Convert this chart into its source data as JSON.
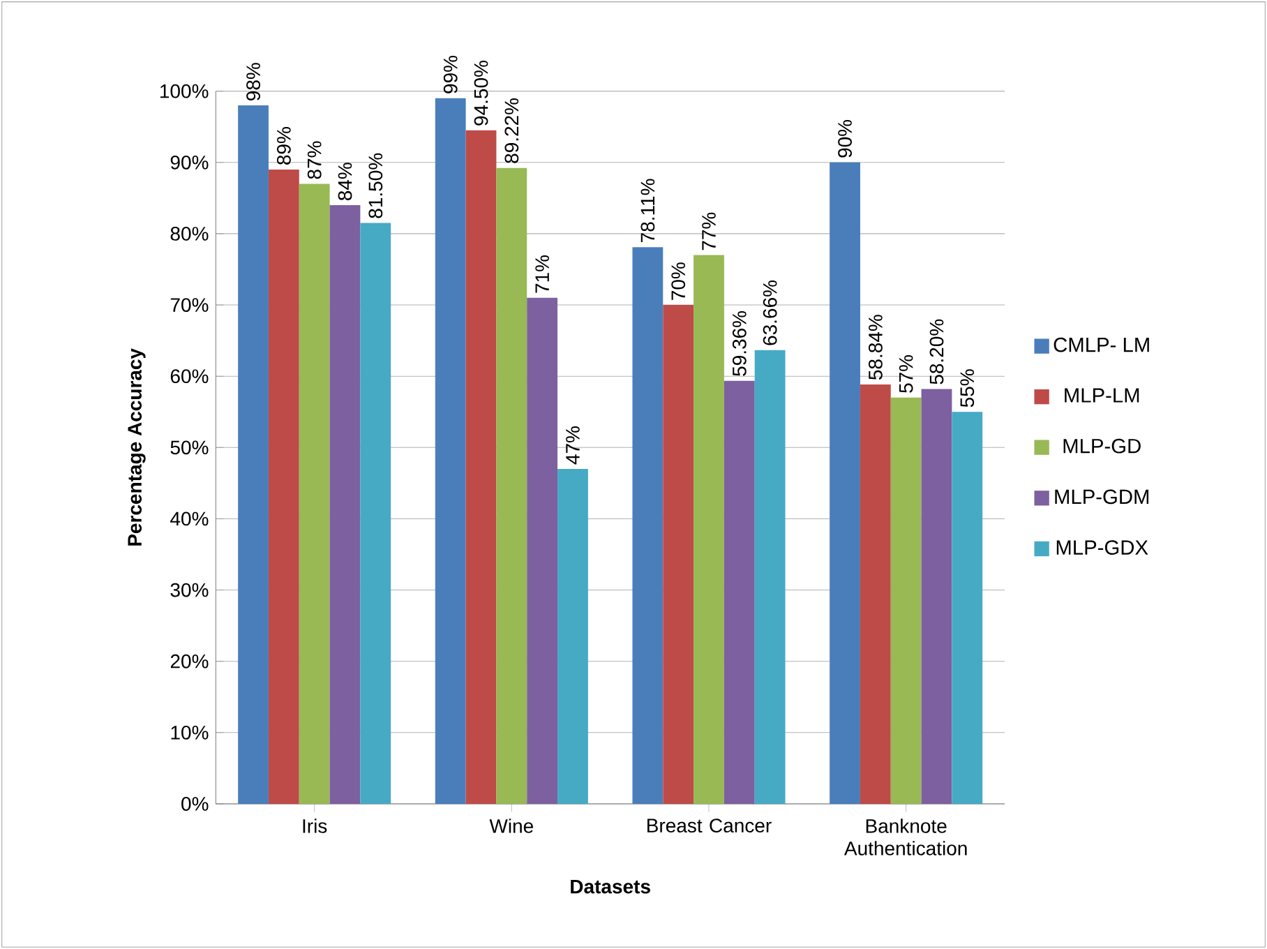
{
  "chart_data": {
    "type": "bar",
    "xlabel": "Datasets",
    "ylabel": "Percentage Accuracy",
    "categories": [
      "Iris",
      "Wine",
      "Breast Cancer",
      "Banknote Authentication"
    ],
    "series": [
      {
        "name": "CMLP- LM",
        "color": "#4a7ebb",
        "values": [
          98,
          99,
          78.11,
          90
        ],
        "value_labels": [
          "98%",
          "99%",
          "78.11%",
          "90%"
        ]
      },
      {
        "name": "MLP-LM",
        "color": "#be4b48",
        "values": [
          89,
          94.5,
          70,
          58.84
        ],
        "value_labels": [
          "89%",
          "94.50%",
          "70%",
          "58.84%"
        ]
      },
      {
        "name": "MLP-GD",
        "color": "#98b954",
        "values": [
          87,
          89.22,
          77,
          57
        ],
        "value_labels": [
          "87%",
          "89.22%",
          "77%",
          "57%"
        ]
      },
      {
        "name": "MLP-GDM",
        "color": "#7d60a0",
        "values": [
          84,
          71,
          59.36,
          58.2
        ],
        "value_labels": [
          "84%",
          "71%",
          "59.36%",
          "58.20%"
        ]
      },
      {
        "name": "MLP-GDX",
        "color": "#46aac5",
        "values": [
          81.5,
          47,
          63.66,
          55
        ],
        "value_labels": [
          "81.50%",
          "47%",
          "63.66%",
          "55%"
        ]
      }
    ],
    "ylim": [
      0,
      100
    ],
    "yticks": [
      {
        "value": 0,
        "label": "0%"
      },
      {
        "value": 10,
        "label": "10%"
      },
      {
        "value": 20,
        "label": "20%"
      },
      {
        "value": 30,
        "label": "30%"
      },
      {
        "value": 40,
        "label": "40%"
      },
      {
        "value": 50,
        "label": "50%"
      },
      {
        "value": 60,
        "label": "60%"
      },
      {
        "value": 70,
        "label": "70%"
      },
      {
        "value": 80,
        "label": "80%"
      },
      {
        "value": 90,
        "label": "90%"
      },
      {
        "value": 100,
        "label": "100%"
      }
    ],
    "grid": "y",
    "legend": "right"
  }
}
